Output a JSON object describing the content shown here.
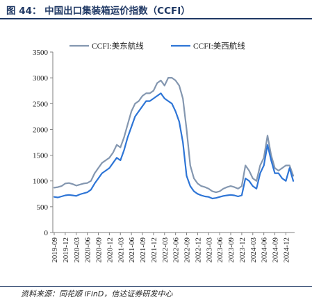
{
  "figure": {
    "title": "图 44： 中国出口集装箱运价指数（CCFI）",
    "source": "资料来源：同花顺 iFinD，信达证券研发中心"
  },
  "colors": {
    "series_east": "#8497b0",
    "series_west": "#2e75d6",
    "axis": "#7f7f7f",
    "title": "#1f3864"
  },
  "chart_data": {
    "type": "line",
    "title": "",
    "xlabel": "",
    "ylabel": "",
    "ylim": [
      0,
      3500
    ],
    "yticks": [
      0,
      500,
      1000,
      1500,
      2000,
      2500,
      3000,
      3500
    ],
    "grid": false,
    "legend_position": "top",
    "x_tick_labels": [
      "2019-09",
      "2019-12",
      "2020-03",
      "2020-06",
      "2020-09",
      "2020-12",
      "2021-03",
      "2021-06",
      "2021-09",
      "2021-12",
      "2022-03",
      "2022-06",
      "2022-09",
      "2022-12",
      "2023-03",
      "2023-06",
      "2023-09",
      "2023-12",
      "2024-03",
      "2024-06",
      "2024-09",
      "2024-12"
    ],
    "series": [
      {
        "name": "CCFI:美东航线",
        "x": [
          "2019-09",
          "2019-10",
          "2019-11",
          "2019-12",
          "2020-01",
          "2020-02",
          "2020-03",
          "2020-04",
          "2020-05",
          "2020-06",
          "2020-07",
          "2020-08",
          "2020-09",
          "2020-10",
          "2020-11",
          "2020-12",
          "2021-01",
          "2021-02",
          "2021-03",
          "2021-04",
          "2021-05",
          "2021-06",
          "2021-07",
          "2021-08",
          "2021-09",
          "2021-10",
          "2021-11",
          "2021-12",
          "2022-01",
          "2022-02",
          "2022-03",
          "2022-04",
          "2022-05",
          "2022-06",
          "2022-07",
          "2022-08",
          "2022-09",
          "2022-10",
          "2022-11",
          "2022-12",
          "2023-01",
          "2023-02",
          "2023-03",
          "2023-04",
          "2023-05",
          "2023-06",
          "2023-07",
          "2023-08",
          "2023-09",
          "2023-10",
          "2023-11",
          "2023-12",
          "2024-01",
          "2024-02",
          "2024-03",
          "2024-04",
          "2024-05",
          "2024-06",
          "2024-07",
          "2024-08",
          "2024-09",
          "2024-10",
          "2024-11",
          "2024-12",
          "2025-01",
          "2025-02"
        ],
        "values": [
          870,
          880,
          900,
          950,
          960,
          940,
          910,
          930,
          950,
          960,
          1000,
          1150,
          1250,
          1350,
          1400,
          1450,
          1550,
          1700,
          1650,
          1850,
          2100,
          2350,
          2500,
          2550,
          2650,
          2700,
          2700,
          2750,
          2900,
          2950,
          2850,
          3000,
          3000,
          2950,
          2850,
          2600,
          2000,
          1300,
          1050,
          950,
          900,
          880,
          850,
          800,
          780,
          800,
          850,
          880,
          900,
          880,
          850,
          900,
          1300,
          1200,
          1050,
          1000,
          1300,
          1450,
          1880,
          1500,
          1250,
          1200,
          1250,
          1300,
          1300,
          1100
        ]
      },
      {
        "name": "CCFI:美西航线",
        "x": [
          "2019-09",
          "2019-10",
          "2019-11",
          "2019-12",
          "2020-01",
          "2020-02",
          "2020-03",
          "2020-04",
          "2020-05",
          "2020-06",
          "2020-07",
          "2020-08",
          "2020-09",
          "2020-10",
          "2020-11",
          "2020-12",
          "2021-01",
          "2021-02",
          "2021-03",
          "2021-04",
          "2021-05",
          "2021-06",
          "2021-07",
          "2021-08",
          "2021-09",
          "2021-10",
          "2021-11",
          "2021-12",
          "2022-01",
          "2022-02",
          "2022-03",
          "2022-04",
          "2022-05",
          "2022-06",
          "2022-07",
          "2022-08",
          "2022-09",
          "2022-10",
          "2022-11",
          "2022-12",
          "2023-01",
          "2023-02",
          "2023-03",
          "2023-04",
          "2023-05",
          "2023-06",
          "2023-07",
          "2023-08",
          "2023-09",
          "2023-10",
          "2023-11",
          "2023-12",
          "2024-01",
          "2024-02",
          "2024-03",
          "2024-04",
          "2024-05",
          "2024-06",
          "2024-07",
          "2024-08",
          "2024-09",
          "2024-10",
          "2024-11",
          "2024-12",
          "2025-01",
          "2025-02"
        ],
        "values": [
          690,
          680,
          700,
          720,
          730,
          720,
          710,
          740,
          760,
          780,
          830,
          950,
          1050,
          1150,
          1200,
          1250,
          1350,
          1450,
          1400,
          1600,
          1850,
          2050,
          2250,
          2350,
          2450,
          2550,
          2550,
          2600,
          2650,
          2700,
          2600,
          2550,
          2500,
          2350,
          2150,
          1750,
          1100,
          900,
          800,
          750,
          720,
          700,
          690,
          660,
          670,
          690,
          710,
          720,
          730,
          720,
          700,
          720,
          1050,
          1000,
          900,
          850,
          1150,
          1300,
          1700,
          1400,
          1150,
          1150,
          1050,
          1000,
          1250,
          1000
        ]
      }
    ]
  }
}
